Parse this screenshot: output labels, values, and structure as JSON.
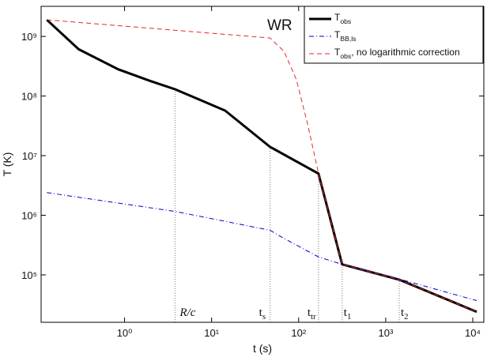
{
  "chart_data": {
    "type": "line",
    "xlabel": "t (s)",
    "ylabel": "T (K)",
    "inset_label": "WR",
    "xlog": true,
    "ylog": true,
    "xlim": [
      0.11,
      13400
    ],
    "ylim": [
      16000,
      3200000000
    ],
    "xticks": [
      {
        "value": 1,
        "label": "10⁰"
      },
      {
        "value": 10,
        "label": "10¹"
      },
      {
        "value": 100,
        "label": "10²"
      },
      {
        "value": 1000,
        "label": "10³"
      },
      {
        "value": 10000,
        "label": "10⁴"
      }
    ],
    "yticks": [
      {
        "value": 100000,
        "label": "10⁵"
      },
      {
        "value": 1000000,
        "label": "10⁶"
      },
      {
        "value": 10000000,
        "label": "10⁷"
      },
      {
        "value": 100000000,
        "label": "10⁸"
      },
      {
        "value": 1000000000,
        "label": "10⁹"
      }
    ],
    "legend": "upper right",
    "series": [
      {
        "name": "T_obs",
        "color": "#000000",
        "style": "solid",
        "x": [
          0.128,
          0.297,
          0.85,
          1.95,
          3.8,
          14.3,
          47,
          169,
          316,
          1430,
          11100
        ],
        "values": [
          1900000000,
          610000000,
          280000000,
          180000000,
          130000000,
          57000000,
          14000000,
          5000000,
          150000,
          83000,
          24000
        ]
      },
      {
        "name": "T_BB,ls",
        "color": "#0000cc",
        "style": "dashdot",
        "x": [
          0.128,
          3.8,
          47,
          62,
          169,
          316,
          1430,
          11100
        ],
        "values": [
          2400000,
          1160000,
          560000,
          440000,
          200000,
          150000,
          85000,
          37000
        ]
      },
      {
        "name": "T_obs, no logarithmic correction",
        "color": "#e8262a",
        "style": "dashed",
        "x": [
          0.128,
          47,
          68,
          94,
          128,
          169,
          316,
          1430,
          11100
        ],
        "values": [
          1900000000,
          940000000,
          560000000,
          190000000,
          32000000,
          5000000,
          150000,
          83000,
          24000
        ]
      }
    ],
    "annotations": [
      {
        "text": "R/c",
        "x": 3.8
      },
      {
        "text": "t_s",
        "x": 47
      },
      {
        "text": "t_tr",
        "x": 169
      },
      {
        "text": "t_1",
        "x": 316
      },
      {
        "text": "t_2",
        "x": 1430
      }
    ]
  }
}
